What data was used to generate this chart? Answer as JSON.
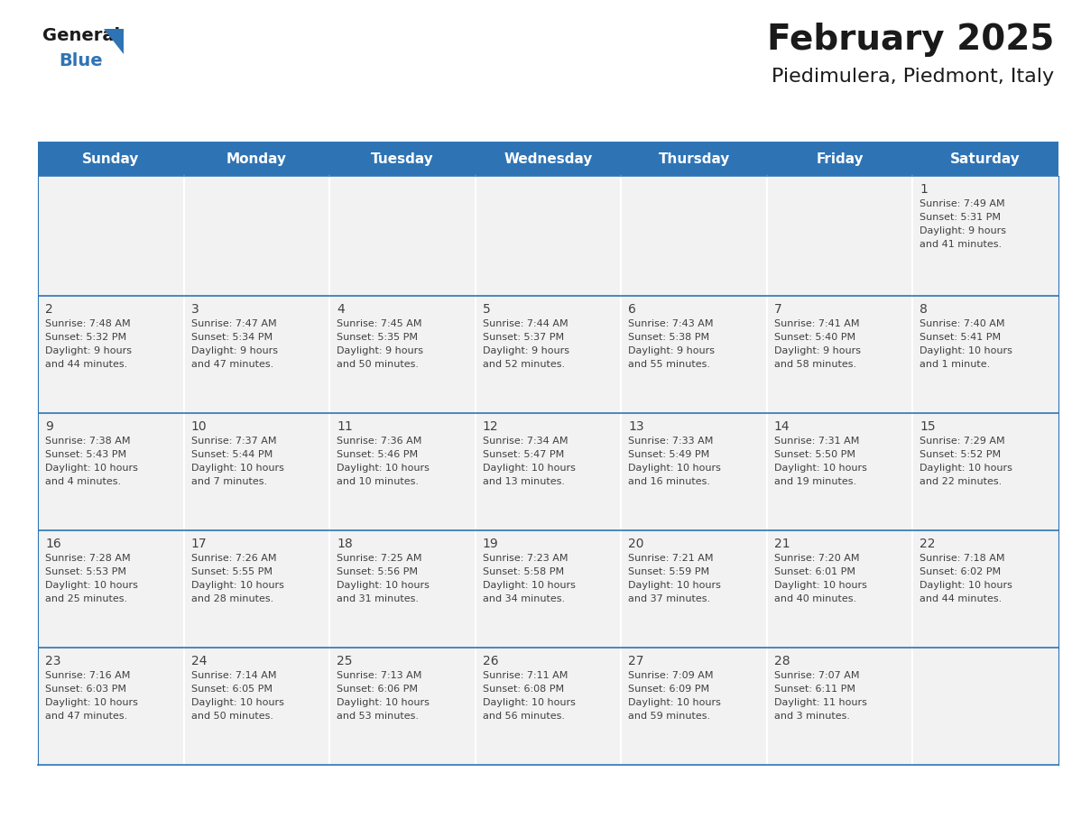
{
  "title": "February 2025",
  "subtitle": "Piedimulera, Piedmont, Italy",
  "days_of_week": [
    "Sunday",
    "Monday",
    "Tuesday",
    "Wednesday",
    "Thursday",
    "Friday",
    "Saturday"
  ],
  "header_bg": "#2E74B5",
  "header_text": "#FFFFFF",
  "cell_bg": "#F2F2F2",
  "text_color": "#404040",
  "title_color": "#1a1a1a",
  "line_color": "#2E74B5",
  "logo_general_color": "#1a1a1a",
  "logo_blue_color": "#2E74B5",
  "calendar_data": [
    [
      null,
      null,
      null,
      null,
      null,
      null,
      {
        "day": "1",
        "sunrise": "7:49 AM",
        "sunset": "5:31 PM",
        "daylight1": "9 hours",
        "daylight2": "and 41 minutes."
      }
    ],
    [
      {
        "day": "2",
        "sunrise": "7:48 AM",
        "sunset": "5:32 PM",
        "daylight1": "9 hours",
        "daylight2": "and 44 minutes."
      },
      {
        "day": "3",
        "sunrise": "7:47 AM",
        "sunset": "5:34 PM",
        "daylight1": "9 hours",
        "daylight2": "and 47 minutes."
      },
      {
        "day": "4",
        "sunrise": "7:45 AM",
        "sunset": "5:35 PM",
        "daylight1": "9 hours",
        "daylight2": "and 50 minutes."
      },
      {
        "day": "5",
        "sunrise": "7:44 AM",
        "sunset": "5:37 PM",
        "daylight1": "9 hours",
        "daylight2": "and 52 minutes."
      },
      {
        "day": "6",
        "sunrise": "7:43 AM",
        "sunset": "5:38 PM",
        "daylight1": "9 hours",
        "daylight2": "and 55 minutes."
      },
      {
        "day": "7",
        "sunrise": "7:41 AM",
        "sunset": "5:40 PM",
        "daylight1": "9 hours",
        "daylight2": "and 58 minutes."
      },
      {
        "day": "8",
        "sunrise": "7:40 AM",
        "sunset": "5:41 PM",
        "daylight1": "10 hours",
        "daylight2": "and 1 minute."
      }
    ],
    [
      {
        "day": "9",
        "sunrise": "7:38 AM",
        "sunset": "5:43 PM",
        "daylight1": "10 hours",
        "daylight2": "and 4 minutes."
      },
      {
        "day": "10",
        "sunrise": "7:37 AM",
        "sunset": "5:44 PM",
        "daylight1": "10 hours",
        "daylight2": "and 7 minutes."
      },
      {
        "day": "11",
        "sunrise": "7:36 AM",
        "sunset": "5:46 PM",
        "daylight1": "10 hours",
        "daylight2": "and 10 minutes."
      },
      {
        "day": "12",
        "sunrise": "7:34 AM",
        "sunset": "5:47 PM",
        "daylight1": "10 hours",
        "daylight2": "and 13 minutes."
      },
      {
        "day": "13",
        "sunrise": "7:33 AM",
        "sunset": "5:49 PM",
        "daylight1": "10 hours",
        "daylight2": "and 16 minutes."
      },
      {
        "day": "14",
        "sunrise": "7:31 AM",
        "sunset": "5:50 PM",
        "daylight1": "10 hours",
        "daylight2": "and 19 minutes."
      },
      {
        "day": "15",
        "sunrise": "7:29 AM",
        "sunset": "5:52 PM",
        "daylight1": "10 hours",
        "daylight2": "and 22 minutes."
      }
    ],
    [
      {
        "day": "16",
        "sunrise": "7:28 AM",
        "sunset": "5:53 PM",
        "daylight1": "10 hours",
        "daylight2": "and 25 minutes."
      },
      {
        "day": "17",
        "sunrise": "7:26 AM",
        "sunset": "5:55 PM",
        "daylight1": "10 hours",
        "daylight2": "and 28 minutes."
      },
      {
        "day": "18",
        "sunrise": "7:25 AM",
        "sunset": "5:56 PM",
        "daylight1": "10 hours",
        "daylight2": "and 31 minutes."
      },
      {
        "day": "19",
        "sunrise": "7:23 AM",
        "sunset": "5:58 PM",
        "daylight1": "10 hours",
        "daylight2": "and 34 minutes."
      },
      {
        "day": "20",
        "sunrise": "7:21 AM",
        "sunset": "5:59 PM",
        "daylight1": "10 hours",
        "daylight2": "and 37 minutes."
      },
      {
        "day": "21",
        "sunrise": "7:20 AM",
        "sunset": "6:01 PM",
        "daylight1": "10 hours",
        "daylight2": "and 40 minutes."
      },
      {
        "day": "22",
        "sunrise": "7:18 AM",
        "sunset": "6:02 PM",
        "daylight1": "10 hours",
        "daylight2": "and 44 minutes."
      }
    ],
    [
      {
        "day": "23",
        "sunrise": "7:16 AM",
        "sunset": "6:03 PM",
        "daylight1": "10 hours",
        "daylight2": "and 47 minutes."
      },
      {
        "day": "24",
        "sunrise": "7:14 AM",
        "sunset": "6:05 PM",
        "daylight1": "10 hours",
        "daylight2": "and 50 minutes."
      },
      {
        "day": "25",
        "sunrise": "7:13 AM",
        "sunset": "6:06 PM",
        "daylight1": "10 hours",
        "daylight2": "and 53 minutes."
      },
      {
        "day": "26",
        "sunrise": "7:11 AM",
        "sunset": "6:08 PM",
        "daylight1": "10 hours",
        "daylight2": "and 56 minutes."
      },
      {
        "day": "27",
        "sunrise": "7:09 AM",
        "sunset": "6:09 PM",
        "daylight1": "10 hours",
        "daylight2": "and 59 minutes."
      },
      {
        "day": "28",
        "sunrise": "7:07 AM",
        "sunset": "6:11 PM",
        "daylight1": "11 hours",
        "daylight2": "and 3 minutes."
      },
      null
    ]
  ],
  "fig_width": 11.88,
  "fig_height": 9.18,
  "dpi": 100,
  "header_fontsize": 11,
  "day_num_fontsize": 10,
  "cell_text_fontsize": 8,
  "title_fontsize": 28,
  "subtitle_fontsize": 16
}
